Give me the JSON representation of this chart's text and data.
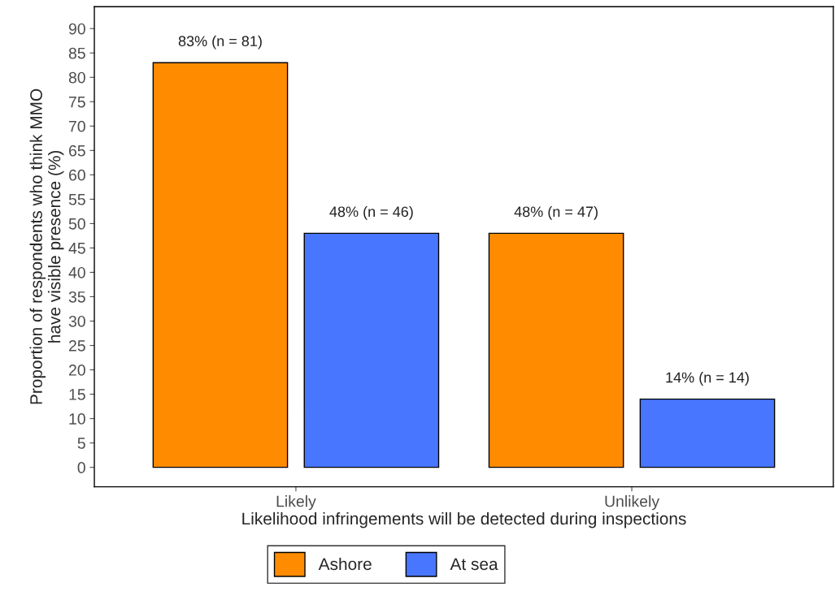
{
  "chart_data": {
    "type": "bar",
    "categories": [
      "Likely",
      "Unlikely"
    ],
    "series": [
      {
        "name": "Ashore",
        "color": "#ff8c00",
        "values": [
          83,
          48
        ],
        "value_labels": [
          "83% (n = 81)",
          "48% (n = 47)"
        ]
      },
      {
        "name": "At sea",
        "color": "#4876ff",
        "values": [
          48,
          14
        ],
        "value_labels": [
          "48% (n = 46)",
          "14% (n = 14)"
        ]
      }
    ],
    "xlabel": "Likelihood infringements will be detected during inspections",
    "ylabel": "Proportion of respondents who think MMO\nhave visible presence (%)",
    "ylim": [
      -4,
      94.5
    ],
    "yticks": [
      0,
      5,
      10,
      15,
      20,
      25,
      30,
      35,
      40,
      45,
      50,
      55,
      60,
      65,
      70,
      75,
      80,
      85,
      90
    ],
    "grid": false,
    "legend": "bottom"
  }
}
